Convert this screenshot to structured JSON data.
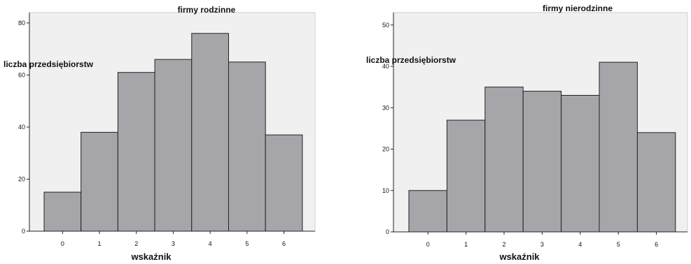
{
  "chart_data": [
    {
      "type": "bar",
      "title": "firmy rodzinne",
      "xlabel": "wskaźnik",
      "ylabel": "liczba przedsiębiorstw",
      "categories": [
        "0",
        "1",
        "2",
        "3",
        "4",
        "5",
        "6"
      ],
      "values": [
        15,
        38,
        61,
        66,
        76,
        65,
        37
      ],
      "yticks": [
        "0",
        "20",
        "40",
        "60",
        "80"
      ],
      "ylim": [
        0,
        84
      ],
      "grid": false,
      "colors": {
        "bar": "#a6a6aa",
        "plot_bg": "#f0f0f0",
        "edge": "#222222"
      }
    },
    {
      "type": "bar",
      "title": "firmy nierodzinne",
      "xlabel": "wskaźnik",
      "ylabel": "liczba przedsiębiorstw",
      "categories": [
        "0",
        "1",
        "2",
        "3",
        "4",
        "5",
        "6"
      ],
      "values": [
        10,
        27,
        35,
        34,
        33,
        41,
        24
      ],
      "yticks": [
        "0",
        "10",
        "20",
        "30",
        "40",
        "50"
      ],
      "ylim": [
        0,
        53
      ],
      "grid": false,
      "colors": {
        "bar": "#a6a6aa",
        "plot_bg": "#f0f0f0",
        "edge": "#222222"
      }
    }
  ]
}
